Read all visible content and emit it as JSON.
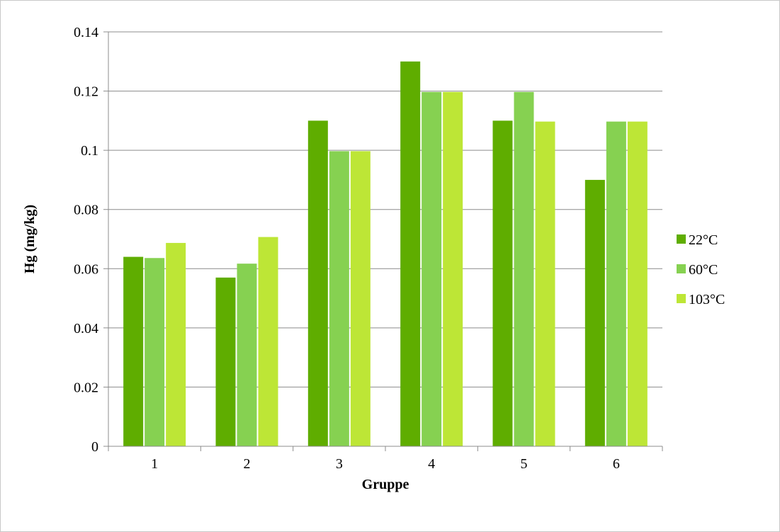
{
  "chart_data": {
    "type": "bar",
    "title": "",
    "xlabel": "Gruppe",
    "ylabel": "Hg (mg/kg)",
    "categories": [
      "1",
      "2",
      "3",
      "4",
      "5",
      "6"
    ],
    "ylim": [
      0,
      0.14
    ],
    "yticks": [
      "0",
      "0.02",
      "0.04",
      "0.06",
      "0.08",
      "0.1",
      "0.12",
      "0.14"
    ],
    "grid": true,
    "legend_position": "right",
    "series": [
      {
        "name": "22°C",
        "color": "#5fad00",
        "values": [
          0.064,
          0.057,
          0.11,
          0.13,
          0.11,
          0.09
        ]
      },
      {
        "name": "60°C",
        "color": "#86d151",
        "values": [
          0.0636,
          0.0617,
          0.0997,
          0.1197,
          0.1197,
          0.1097
        ]
      },
      {
        "name": "103°C",
        "color": "#bde636",
        "values": [
          0.0687,
          0.0707,
          0.0997,
          0.1197,
          0.1097,
          0.1097
        ]
      }
    ]
  }
}
